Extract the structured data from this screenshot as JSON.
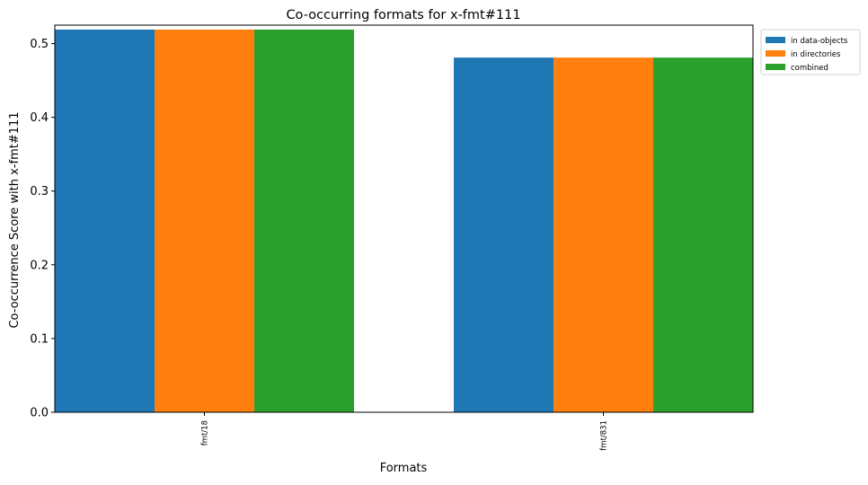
{
  "chart_data": {
    "type": "bar",
    "title": "Co-occurring formats for x-fmt#111",
    "xlabel": "Formats",
    "ylabel": "Co-occurrence Score with x-fmt#111",
    "categories": [
      "fmt/18",
      "fmt/831"
    ],
    "series": [
      {
        "name": "in data-objects",
        "color": "#1f77b4",
        "values": [
          0.519,
          0.481
        ]
      },
      {
        "name": "in directories",
        "color": "#ff7f0e",
        "values": [
          0.519,
          0.481
        ]
      },
      {
        "name": "combined",
        "color": "#2ca02c",
        "values": [
          0.519,
          0.481
        ]
      }
    ],
    "ylim": [
      0,
      0.525
    ],
    "yticks": [
      0.0,
      0.1,
      0.2,
      0.3,
      0.4,
      0.5
    ],
    "ytick_labels": [
      "0.0",
      "0.1",
      "0.2",
      "0.3",
      "0.4",
      "0.5"
    ],
    "grid": false,
    "legend_position": "outside-top-right"
  }
}
